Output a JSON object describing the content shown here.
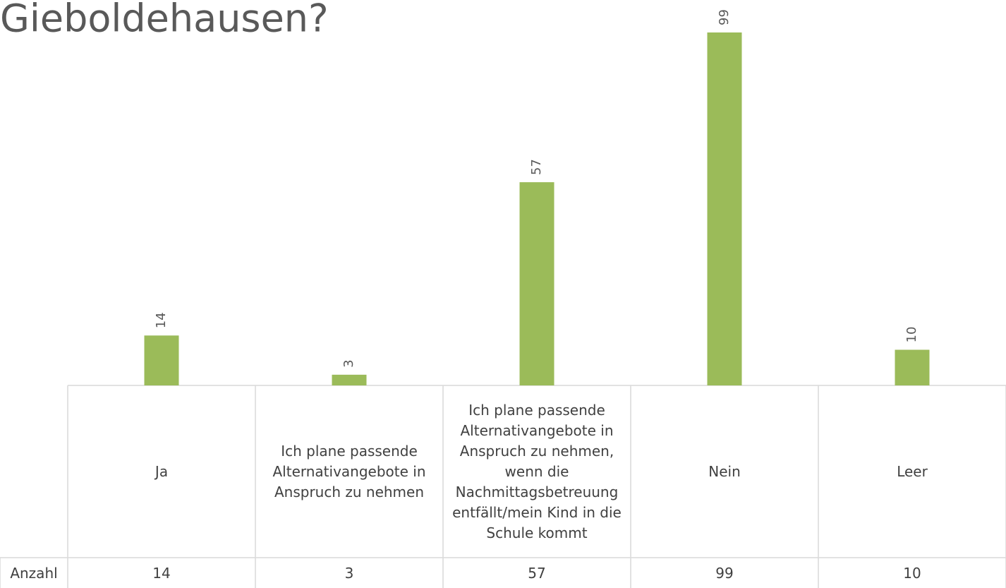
{
  "chart_data": {
    "type": "bar",
    "title": "Gieboldehausen?",
    "categories": [
      "Ja",
      "Ich plane passende Alternativangebote in Anspruch zu nehmen",
      "Ich plane passende Alternativangebote in Anspruch zu nehmen, wenn die Nachmittagsbetreuung entfällt/mein Kind in die Schule kommt",
      "Nein",
      "Leer"
    ],
    "series": [
      {
        "name": "Anzahl",
        "color": "#9bbb59",
        "values": [
          14,
          3,
          57,
          99,
          10
        ]
      }
    ]
  }
}
